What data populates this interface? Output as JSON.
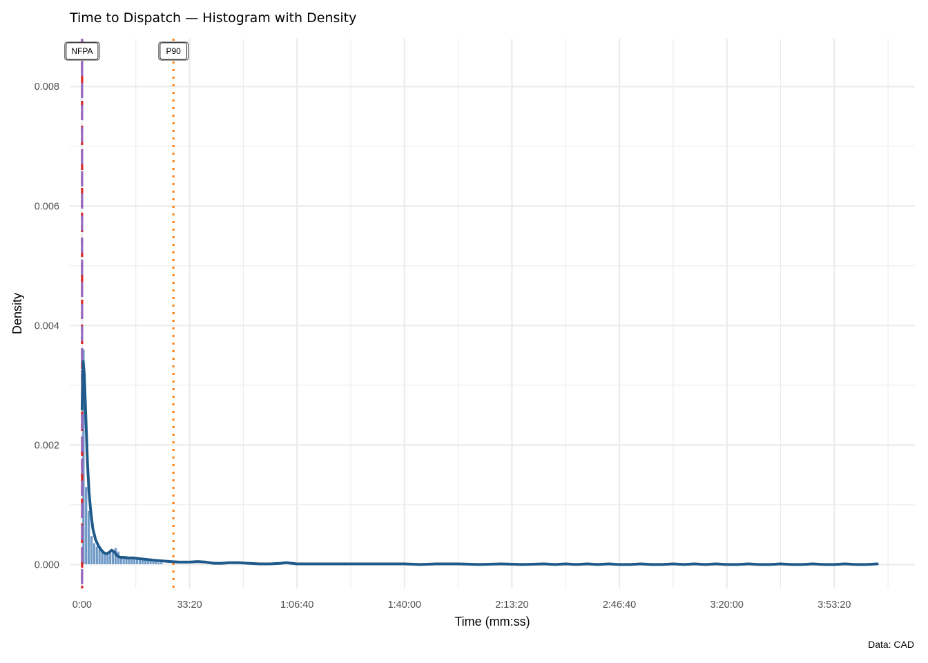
{
  "chart_data": {
    "type": "histogram",
    "title": "Time to Dispatch — Histogram with Density",
    "xlabel": "Time (mm:ss)",
    "ylabel": "Density",
    "caption": "Data: CAD",
    "x_unit": "seconds",
    "xlim": [
      -230,
      15500
    ],
    "ylim": [
      -0.0004,
      0.0088
    ],
    "x_ticks": [
      {
        "value": 0,
        "label": "0:00"
      },
      {
        "value": 2000,
        "label": "33:20"
      },
      {
        "value": 4000,
        "label": "1:06:40"
      },
      {
        "value": 6000,
        "label": "1:40:00"
      },
      {
        "value": 8000,
        "label": "2:13:20"
      },
      {
        "value": 10000,
        "label": "2:46:40"
      },
      {
        "value": 12000,
        "label": "3:20:00"
      },
      {
        "value": 14000,
        "label": "3:53:20"
      }
    ],
    "y_ticks": [
      {
        "value": 0,
        "label": "0.000"
      },
      {
        "value": 0.002,
        "label": "0.002"
      },
      {
        "value": 0.004,
        "label": "0.004"
      },
      {
        "value": 0.006,
        "label": "0.006"
      },
      {
        "value": 0.008,
        "label": "0.008"
      }
    ],
    "grid": true,
    "histogram": {
      "bin_width": 50,
      "bin_starts": [
        0,
        50,
        100,
        150,
        200,
        250,
        300,
        350,
        400,
        450,
        500,
        550,
        600,
        650,
        700,
        750,
        800,
        850,
        900,
        950,
        1000,
        1050,
        1100,
        1150,
        1200,
        1250,
        1300,
        1350,
        1400,
        1450
      ],
      "density": [
        0.0036,
        0.0013,
        0.0009,
        0.00048,
        0.00036,
        0.0003,
        0.00026,
        0.00022,
        0.00018,
        0.00019,
        0.0002,
        0.00022,
        0.00028,
        0.00022,
        0.00014,
        0.00012,
        0.00012,
        0.00011,
        0.0001,
        0.0001,
        9e-05,
        9e-05,
        8e-05,
        7e-05,
        6e-05,
        6e-05,
        5e-05,
        5e-05,
        4e-05,
        4e-05
      ],
      "fill": "#6f9ac7",
      "outline": "#ffffff"
    },
    "density_curve": {
      "color": "#1f5a8a",
      "x": [
        0,
        20,
        40,
        60,
        80,
        100,
        130,
        160,
        200,
        250,
        300,
        350,
        400,
        450,
        500,
        550,
        600,
        640,
        680,
        720,
        780,
        850,
        950,
        1050,
        1150,
        1250,
        1350,
        1500,
        1650,
        1800,
        2000,
        2150,
        2300,
        2450,
        2600,
        2750,
        2900,
        3100,
        3300,
        3500,
        3700,
        3800,
        3900,
        4000,
        4200,
        4500,
        4800,
        5200,
        5600,
        6000,
        6300,
        6600,
        7000,
        7400,
        7800,
        8200,
        8600,
        8800,
        9000,
        9200,
        9400,
        9600,
        9800,
        10000,
        10200,
        10400,
        10600,
        10800,
        11000,
        11200,
        11400,
        11600,
        11800,
        12000,
        12200,
        12400,
        12600,
        12800,
        13000,
        13200,
        13400,
        13600,
        13800,
        14000,
        14200,
        14400,
        14600,
        14800
      ],
      "y": [
        0.0026,
        0.0034,
        0.0032,
        0.0027,
        0.0022,
        0.0017,
        0.0012,
        0.0009,
        0.0006,
        0.00042,
        0.00032,
        0.00025,
        0.0002,
        0.00018,
        0.0002,
        0.00024,
        0.00021,
        0.00016,
        0.00013,
        0.00012,
        0.00012,
        0.00011,
        0.00011,
        0.0001,
        9e-05,
        8e-05,
        7e-05,
        6e-05,
        5e-05,
        4e-05,
        4e-05,
        5e-05,
        4e-05,
        2e-05,
        2e-05,
        3e-05,
        3e-05,
        2e-05,
        1e-05,
        1e-05,
        2e-05,
        3e-05,
        2e-05,
        1e-05,
        1e-05,
        1e-05,
        1e-05,
        1e-05,
        1e-05,
        1e-05,
        0.0,
        1e-05,
        1e-05,
        0.0,
        1e-05,
        0.0,
        1e-05,
        0.0,
        1e-05,
        0.0,
        1e-05,
        0.0,
        1e-05,
        0.0,
        0.0,
        1e-05,
        0.0,
        0.0,
        1e-05,
        0.0,
        1e-05,
        0.0,
        1e-05,
        0.0,
        0.0,
        1e-05,
        0.0,
        0.0,
        1e-05,
        0.0,
        0.0,
        1e-05,
        0.0,
        0.0,
        1e-05,
        0.0,
        0.0,
        1e-05
      ]
    },
    "reference_lines": [
      {
        "name": "NFPA",
        "value": 0,
        "color": "#d62728",
        "style": "dashed",
        "label": "NFPA"
      },
      {
        "name": "median",
        "value": 0,
        "color": "#9467bd",
        "style": "longdash",
        "label": ""
      },
      {
        "name": "P90",
        "value": 1700,
        "color": "#ff7f0e",
        "style": "dotted",
        "label": "P90"
      }
    ]
  }
}
